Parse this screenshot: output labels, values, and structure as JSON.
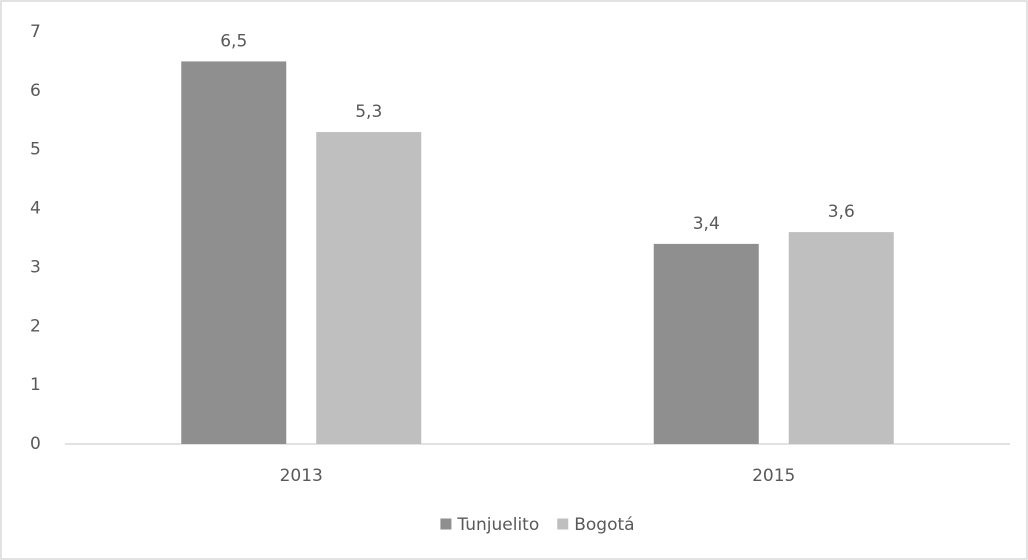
{
  "chart_data": {
    "type": "bar",
    "categories": [
      "2013",
      "2015"
    ],
    "series": [
      {
        "name": "Tunjuelito",
        "color": "#8f8f8f",
        "values": [
          6.5,
          3.4
        ],
        "value_labels": [
          "6,5",
          "3,4"
        ]
      },
      {
        "name": "Bogotá",
        "color": "#bfbfbf",
        "values": [
          5.3,
          3.6
        ],
        "value_labels": [
          "5,3",
          "3,6"
        ]
      }
    ],
    "ylim": [
      0,
      7
    ],
    "yticks": [
      0,
      1,
      2,
      3,
      4,
      5,
      6,
      7
    ],
    "grid": false,
    "legend": "bottom"
  }
}
